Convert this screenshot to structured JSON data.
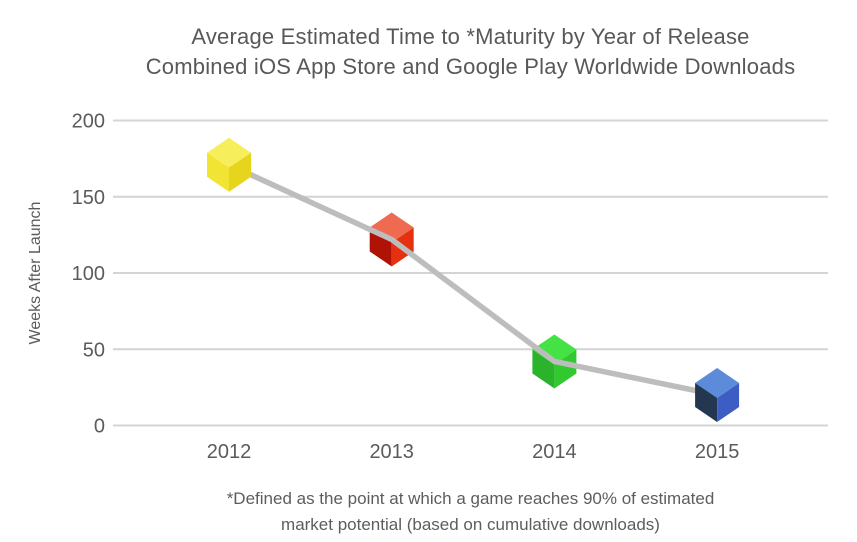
{
  "title": {
    "line1": "Average Estimated Time to *Maturity by Year of Release",
    "line2": "Combined iOS App Store and Google Play Worldwide Downloads"
  },
  "footnote": {
    "line1": "*Defined as the point at which a game reaches 90% of estimated",
    "line2": "market potential (based on cumulative downloads)"
  },
  "chart_data": {
    "type": "line",
    "title": "Average Estimated Time to *Maturity by Year of Release",
    "subtitle": "Combined iOS App Store and Google Play Worldwide Downloads",
    "categories": [
      "2012",
      "2013",
      "2014",
      "2015"
    ],
    "values": [
      171,
      122,
      42,
      20
    ],
    "xlabel": "",
    "ylabel": "Weeks After Launch",
    "yticks": [
      0,
      50,
      100,
      150,
      200
    ],
    "ylim": [
      0,
      200
    ],
    "grid": true,
    "legend": "none",
    "line_color": "#bdbdbd",
    "grid_color": "#d4d4d4",
    "marker_style": "isometric-cube",
    "markers": [
      {
        "category": "2012",
        "name": "yellow-cube",
        "top": "#f6ef5b",
        "left": "#f1e433",
        "right": "#e7d41c"
      },
      {
        "category": "2013",
        "name": "red-cube",
        "top": "#ee6b52",
        "left": "#ae1306",
        "right": "#e5310f"
      },
      {
        "category": "2014",
        "name": "green-cube",
        "top": "#45e245",
        "left": "#2cb32c",
        "right": "#30c930"
      },
      {
        "category": "2015",
        "name": "blue-cube",
        "top": "#5b8bd9",
        "left": "#233750",
        "right": "#3c5ec4"
      }
    ]
  }
}
